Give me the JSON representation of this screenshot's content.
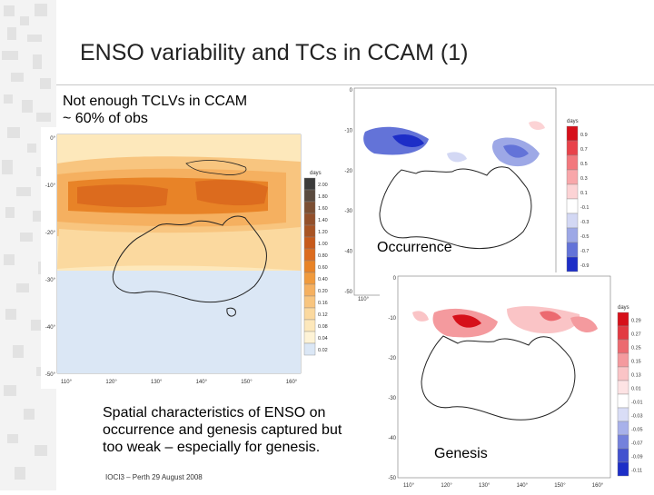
{
  "slide": {
    "title": "ENSO variability and TCs in CCAM (1)",
    "note_line1": "Not enough TCLVs in CCAM",
    "note_line2": "~ 60% of obs",
    "summary_line1": "Spatial characteristics of ENSO on",
    "summary_line2": "occurrence and genesis captured but",
    "summary_line3": "too weak – especially for genesis.",
    "footer": "IOCI3 – Perth 29 August 2008"
  },
  "map_main": {
    "lon_labels": [
      "110°",
      "120°",
      "130°",
      "140°",
      "150°",
      "160°"
    ],
    "lat_labels": [
      "0°",
      "-10°",
      "-20°",
      "-30°",
      "-40°",
      "-50°"
    ],
    "legend_unit": "days",
    "legend_labels": [
      "2.00",
      "1.80",
      "1.60",
      "1.40",
      "1.20",
      "1.00",
      "0.80",
      "0.60",
      "0.40",
      "0.20",
      "0.16",
      "0.12",
      "0.08",
      "0.04",
      "0.02"
    ],
    "legend_colors": [
      "#3b3b3b",
      "#5a4a3e",
      "#7b4f33",
      "#93502b",
      "#a85424",
      "#c65a1c",
      "#dc6b1e",
      "#e88327",
      "#f09a3c",
      "#f5b060",
      "#f8c57f",
      "#fbd99f",
      "#fde8bb",
      "#fef3d6",
      "#dbe7f5"
    ]
  },
  "map_occurrence": {
    "label": "Occurrence",
    "lon_labels": [
      "110°"
    ],
    "lat_labels": [
      "0",
      "-10",
      "-20",
      "-30",
      "-40",
      "-50"
    ],
    "legend_unit": "days",
    "legend_labels": [
      "0.9",
      "0.7",
      "0.5",
      "0.3",
      "0.1",
      "-0.1",
      "-0.3",
      "-0.5",
      "-0.7",
      "-0.9"
    ],
    "legend_colors": [
      "#d6101a",
      "#e8424a",
      "#f2787d",
      "#f8a7aa",
      "#fcd3d5",
      "#ffffff",
      "#d3d8f4",
      "#9da8e6",
      "#6373d8",
      "#1d2ec7"
    ]
  },
  "map_genesis": {
    "label": "Genesis",
    "lon_labels": [
      "110°",
      "120°",
      "130°",
      "140°",
      "150°",
      "160°"
    ],
    "lat_labels": [
      "0",
      "-10",
      "-20",
      "-30",
      "-40",
      "-50"
    ],
    "legend_unit": "days",
    "legend_labels": [
      "0.29",
      "0.27",
      "0.25",
      "0.15",
      "0.13",
      "0.01",
      "-0.01",
      "-0.03",
      "-0.05",
      "-0.07",
      "-0.09",
      "-0.11"
    ],
    "legend_colors": [
      "#d6101a",
      "#e23a42",
      "#ec6a70",
      "#f49a9e",
      "#fac4c6",
      "#fde3e4",
      "#ffffff",
      "#d9ddf6",
      "#a8b1ea",
      "#7481dc",
      "#4352cf",
      "#1d2ec7"
    ]
  }
}
